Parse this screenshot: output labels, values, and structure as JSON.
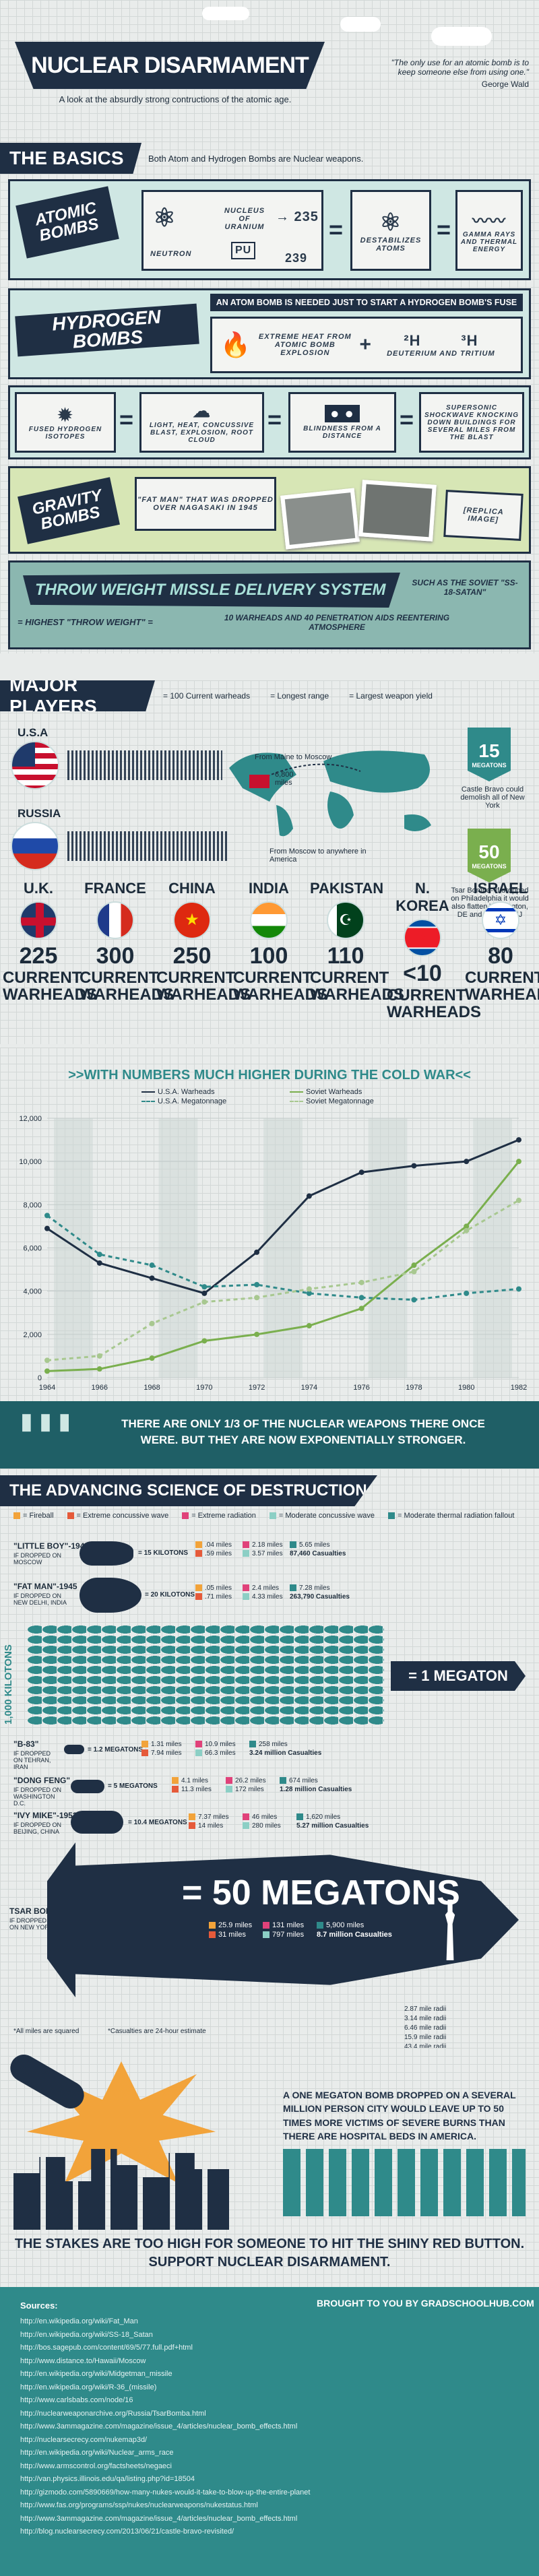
{
  "header": {
    "title": "NUCLEAR DISARMAMENT",
    "subtitle": "A look at the absurdly strong contructions of the atomic age.",
    "quote": "\"The only use for an atomic bomb is to keep someone else from using one.\"",
    "quote_author": "George Wald"
  },
  "basics": {
    "heading": "THE BASICS",
    "subheading": "Both Atom and Hydrogen Bombs are Nuclear weapons.",
    "atomic_label": "ATOMIC BOMBS",
    "neutron": "NEUTRON",
    "nucleus": "NUCLEUS OF URANIUM",
    "u235": "→ 235",
    "pu": "Pu",
    "n239": "239",
    "destabilizes": "DESTABILIZES ATOMS",
    "gamma": "GAMMA RAYS AND THERMAL ENERGY",
    "hydrogen_label": "HYDROGEN BOMBS",
    "hydrogen_note": "AN ATOM BOMB IS NEEDED JUST TO START A HYDROGEN BOMB'S FUSE",
    "extreme_heat": "EXTREME HEAT FROM ATOMIC BOMB EXPLOSION",
    "h2": "²H",
    "h3": "³H",
    "deut": "DEUTERIUM AND TRITIUM",
    "fused": "FUSED HYDROGEN ISOTOPES",
    "light_heat": "LIGHT, HEAT, CONCUSSIVE BLAST, EXPLOSION, ROOT CLOUD",
    "blindness": "BLINDNESS FROM A DISTANCE",
    "supersonic": "SUPERSONIC SHOCKWAVE KNOCKING DOWN BUILDINGS FOR SEVERAL MILES FROM THE BLAST",
    "gravity_label": "GRAVITY BOMBS",
    "fatman": "\"FAT MAN\" THAT WAS DROPPED OVER NAGASAKI IN 1945",
    "replica": "[REPLICA IMAGE]",
    "throw_label": "THROW WEIGHT MISSLE DELIVERY SYSTEM",
    "soviet": "SUCH AS THE SOVIET \"SS-18-SATAN\"",
    "highest": "= HIGHEST \"THROW WEIGHT\" =",
    "warheads": "10 WARHEADS AND 40 PENETRATION AIDS REENTERING ATMOSPHERE"
  },
  "players": {
    "heading": "MAJOR PLAYERS",
    "legend_warheads": "= 100 Current warheads",
    "legend_range": "= Longest range",
    "legend_yield": "= Largest weapon yield",
    "usa": "U.S.A",
    "russia": "RUSSIA",
    "maine": "From Maine to Moscow",
    "miles": "6,800 miles",
    "moscow": "From Moscow to anywhere in America",
    "mt15": "15",
    "mt15_unit": "MEGATONS",
    "castle": "Castle Bravo could demolish all of New York",
    "mt50": "50",
    "mt50_unit": "MEGATONS",
    "tsar_note": "Tsar Bomba- If dropped on Philadelphia it would also flatten Wilmington, DE and Trenton, NJ",
    "countries": [
      {
        "name": "U.K.",
        "count": "225",
        "label": "CURRENT WARHEADS"
      },
      {
        "name": "FRANCE",
        "count": "300",
        "label": "CURRENT WARHEADS"
      },
      {
        "name": "CHINA",
        "count": "250",
        "label": "CURRENT WARHEADS"
      },
      {
        "name": "INDIA",
        "count": "100",
        "label": "CURRENT WARHEADS"
      },
      {
        "name": "PAKISTAN",
        "count": "110",
        "label": "CURRENT WARHEADS"
      },
      {
        "name": "N. KOREA",
        "count": "<10",
        "label": "CURRENT WARHEADS"
      },
      {
        "name": "ISRAEL",
        "count": "80",
        "label": "CURRENT WARHEADS"
      }
    ]
  },
  "chart_data": {
    "type": "line",
    "title": ">>WITH NUMBERS MUCH HIGHER DURING THE COLD WAR<<",
    "x": [
      1964,
      1966,
      1968,
      1970,
      1972,
      1974,
      1976,
      1978,
      1980,
      1982
    ],
    "ylim": [
      0,
      12000
    ],
    "yticks": [
      "0",
      "2,000",
      "4,000",
      "6,000",
      "8,000",
      "10,000",
      "12,000"
    ],
    "series": [
      {
        "name": "U.S.A. Warheads",
        "color": "#1f2f44",
        "dash": false,
        "values": [
          6900,
          5300,
          4600,
          3900,
          5800,
          8400,
          9500,
          9800,
          10000,
          11000
        ]
      },
      {
        "name": "U.S.A. Megatonnage",
        "color": "#2f8a8a",
        "dash": true,
        "values": [
          7500,
          5700,
          5200,
          4200,
          4300,
          3900,
          3700,
          3600,
          3900,
          4100
        ]
      },
      {
        "name": "Soviet Warheads",
        "color": "#7aaf4e",
        "dash": false,
        "values": [
          300,
          400,
          900,
          1700,
          2000,
          2400,
          3200,
          5200,
          7000,
          10000
        ]
      },
      {
        "name": "Soviet Megatonnage",
        "color": "#a8c890",
        "dash": true,
        "values": [
          800,
          1000,
          2500,
          3500,
          3700,
          4100,
          4400,
          4900,
          6800,
          8200
        ]
      }
    ],
    "grid": true,
    "legend": "top"
  },
  "onethird": {
    "text": "THERE ARE ONLY 1/3 OF THE NUCLEAR WEAPONS THERE ONCE WERE. BUT THEY ARE NOW EXPONENTIALLY STRONGER."
  },
  "science": {
    "heading": "THE ADVANCING SCIENCE OF DESTRUCTION",
    "legend": [
      {
        "label": "= Fireball",
        "color": "#f2a33a"
      },
      {
        "label": "= Extreme concussive wave",
        "color": "#e55a3a"
      },
      {
        "label": "= Extreme radiation",
        "color": "#e0427a"
      },
      {
        "label": "= Moderate concussive wave",
        "color": "#8ccfc5"
      },
      {
        "label": "= Moderate thermal radiation fallout",
        "color": "#2f8a8a"
      }
    ],
    "little_boy": {
      "name": "\"LITTLE BOY\"-1945",
      "sub": "IF DROPPED ON MOSCOW",
      "kilo": "= 15 KILOTONS",
      "stats": [
        ".04 miles",
        "2.18 miles",
        "5.65 miles",
        ".59 miles",
        "3.57 miles",
        "87,460 Casualties"
      ]
    },
    "fat_man": {
      "name": "\"FAT MAN\"-1945",
      "sub": "IF DROPPED ON NEW DELHI, INDIA",
      "kilo": "= 20 KILOTONS",
      "stats": [
        ".05 miles",
        "2.4 miles",
        "7.28 miles",
        ".71 miles",
        "4.33 miles",
        "263,790 Casualties"
      ]
    },
    "kilotons_label": "1,000 KILOTONS",
    "megaton": "= 1 MEGATON",
    "b83": {
      "name": "\"B-83\"",
      "sub": "IF DROPPED ON TEHRAN, IRAN",
      "mt": "= 1.2 MEGATONS",
      "stats": [
        "1.31 miles",
        "10.9 miles",
        "258 miles",
        "7.94 miles",
        "66.3 miles",
        "3.24 million Casualties"
      ]
    },
    "dong": {
      "name": "\"DONG FENG\"",
      "sub": "IF DROPPED ON WASHINGTON D.C.",
      "mt": "= 5 MEGATONS",
      "stats": [
        "4.1 miles",
        "26.2 miles",
        "674 miles",
        "11.3 miles",
        "172 miles",
        "1.28 million Casualties"
      ]
    },
    "ivy": {
      "name": "\"IVY MIKE\"-1952",
      "sub": "IF DROPPED ON BEIJING, CHINA",
      "mt": "= 10.4 MEGATONS",
      "stats": [
        "7.37 miles",
        "46 miles",
        "1,620 miles",
        "14 miles",
        "280 miles",
        "5.27 million Casualties"
      ]
    },
    "tsar": {
      "name": "TSAR BOMBA -1961",
      "sub": "IF DROPPED ON NEW YORK",
      "mt": "= 50 MEGATONS",
      "stats": [
        "25.9 miles",
        "131 miles",
        "5,900 miles",
        "31 miles",
        "797 miles",
        "8.7 million Casualties"
      ]
    },
    "radii": [
      "2.87 mile radii",
      "3.14 mile radii",
      "6.46 mile radii",
      "15.9 mile radii",
      "43.4 mile radii"
    ],
    "note_squared": "*All miles are squared",
    "note_24": "*Casualties are 24-hour estimate"
  },
  "closing": {
    "text": "A ONE MEGATON BOMB DROPPED ON A SEVERAL MILLION PERSON CITY WOULD LEAVE UP TO 50 TIMES MORE VICTIMS OF SEVERE BURNS THAN THERE ARE HOSPITAL BEDS IN AMERICA.",
    "stakes": "THE STAKES ARE TOO HIGH FOR SOMEONE TO HIT THE SHINY RED BUTTON.",
    "support": "SUPPORT NUCLEAR DISARMAMENT."
  },
  "footer": {
    "sources_label": "Sources:",
    "brought_by": "BROUGHT TO YOU BY GRADSCHOOLHUB.COM",
    "links": [
      "http://en.wikipedia.org/wiki/Fat_Man",
      "http://en.wikipedia.org/wiki/SS-18_Satan",
      "http://bos.sagepub.com/content/69/5/77.full.pdf+html",
      "http://www.distance.to/Hawaii/Moscow",
      "http://en.wikipedia.org/wiki/Midgetman_missile",
      "http://en.wikipedia.org/wiki/R-36_(missile)",
      "http://www.carlsbabs.com/node/16",
      "http://nuclearweaponarchive.org/Russia/TsarBomba.html",
      "http://www.3ammagazine.com/magazine/issue_4/articles/nuclear_bomb_effects.html",
      "http://nuclearsecrecy.com/nukemap3d/",
      "http://en.wikipedia.org/wiki/Nuclear_arms_race",
      "http://www.armscontrol.org/factsheets/negaeci",
      "http://van.physics.illinois.edu/qa/listing.php?id=18504",
      "http://gizmodo.com/5890669/how-many-nukes-would-it-take-to-blow-up-the-entire-planet",
      "http://www.fas.org/programs/ssp/nukes/nuclearweapons/nukestatus.html",
      "http://www.3ammagazine.com/magazine/issue_4/articles/nuclear_bomb_effects.html",
      "http://blog.nuclearsecrecy.com/2013/06/21/castle-bravo-revisited/"
    ]
  }
}
